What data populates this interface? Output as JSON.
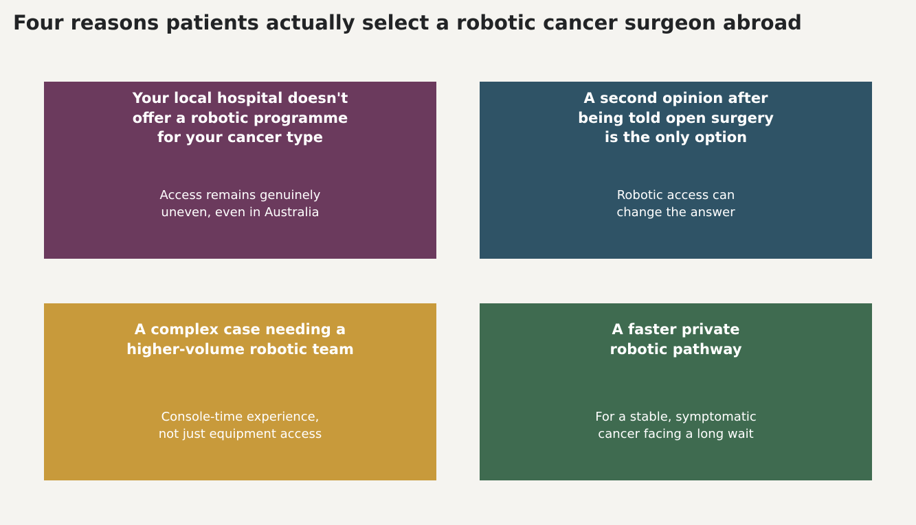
{
  "title": "Four reasons patients actually select a robotic cancer surgeon abroad",
  "cards": [
    {
      "heading": "Your local hospital doesn't\noffer a robotic programme\nfor your cancer type",
      "subtext": "Access remains genuinely\nuneven, even in Australia",
      "color": "#6b3a5d"
    },
    {
      "heading": "A second opinion after\nbeing told open surgery\nis the only option",
      "subtext": "Robotic access can\nchange the answer",
      "color": "#2f5366"
    },
    {
      "heading": "A complex case needing a\nhigher-volume robotic team",
      "subtext": "Console-time experience,\nnot just equipment access",
      "color": "#c89a3b"
    },
    {
      "heading": "A faster private\nrobotic pathway",
      "subtext": "For a stable, symptomatic\ncancer facing a long wait",
      "color": "#3f6b50"
    }
  ]
}
